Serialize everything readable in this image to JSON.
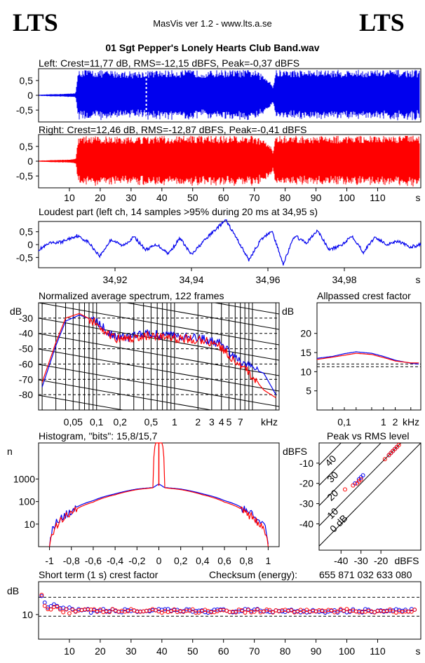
{
  "header": {
    "logo_left": "LTS",
    "logo_right": "LTS",
    "app": "MasVis ver 1.2 - www.lts.a.se",
    "file": "01 Sgt Pepper's Lonely Hearts Club Band.wav"
  },
  "colors": {
    "left": "#0000ee",
    "right": "#ff0000",
    "axis": "#000000",
    "grid": "#000000"
  },
  "chart_data": [
    {
      "id": "left_waveform",
      "type": "area",
      "title": "Left: Crest=11,77 dB, RMS=-12,15 dBFS, Peak=-0,37 dBFS",
      "ylim": [
        -0.9,
        0.9
      ],
      "yticks": [
        "0.5",
        "0",
        "-0.5"
      ],
      "yticklabels": [
        "0,5",
        "0",
        "-0,5"
      ],
      "xlim": [
        0,
        124
      ],
      "series": [
        {
          "color": "#0000ee",
          "t": [
            0,
            10,
            12,
            13,
            20,
            30,
            40,
            50,
            55,
            58,
            60,
            70,
            75,
            76,
            77,
            80,
            90,
            100,
            110,
            122
          ],
          "envelope": [
            0.02,
            0.06,
            0.08,
            0.88,
            0.85,
            0.82,
            0.85,
            0.86,
            0.82,
            0.86,
            0.86,
            0.86,
            0.55,
            0.3,
            0.86,
            0.86,
            0.86,
            0.86,
            0.86,
            0.86
          ]
        }
      ],
      "marker_time": 34.95
    },
    {
      "id": "right_waveform",
      "type": "area",
      "title": "Right: Crest=12,46 dB, RMS=-12,87 dBFS, Peak=-0,41 dBFS",
      "ylim": [
        -0.9,
        0.9
      ],
      "yticklabels": [
        "0,5",
        "0",
        "-0,5"
      ],
      "xlim": [
        0,
        124
      ],
      "xticks": [
        "10",
        "20",
        "30",
        "40",
        "50",
        "60",
        "70",
        "80",
        "90",
        "100",
        "110"
      ],
      "xunit": "s",
      "series": [
        {
          "color": "#ff0000",
          "t": [
            0,
            10,
            12,
            13,
            20,
            30,
            40,
            50,
            60,
            70,
            75,
            76,
            77,
            80,
            90,
            100,
            110,
            122
          ],
          "envelope": [
            0.02,
            0.06,
            0.08,
            0.86,
            0.84,
            0.82,
            0.85,
            0.86,
            0.86,
            0.86,
            0.6,
            0.3,
            0.86,
            0.86,
            0.86,
            0.86,
            0.86,
            0.86
          ]
        }
      ]
    },
    {
      "id": "loudest_part",
      "type": "line",
      "title": "Loudest part (left  ch, 14 samples >95% during 20 ms at 34,95 s)",
      "ylim": [
        -0.9,
        0.9
      ],
      "yticklabels": [
        "0,5",
        "0",
        "-0,5"
      ],
      "xlim": [
        34.9,
        35.0
      ],
      "xticks": [
        "34,92",
        "34,94",
        "34,96",
        "34,98"
      ],
      "xunit": "s",
      "series": [
        {
          "color": "#0000ee",
          "x": [
            34.9,
            34.903,
            34.906,
            34.91,
            34.913,
            34.916,
            34.919,
            34.922,
            34.925,
            34.928,
            34.931,
            34.934,
            34.937,
            34.94,
            34.943,
            34.946,
            34.949,
            34.952,
            34.955,
            34.958,
            34.961,
            34.964,
            34.967,
            34.97,
            34.973,
            34.976,
            34.979,
            34.982,
            34.985,
            34.988,
            34.991,
            34.994,
            34.997,
            35.0
          ],
          "y": [
            -0.2,
            0.05,
            0.1,
            0.35,
            0.1,
            -0.45,
            0.2,
            -0.05,
            0.3,
            -0.2,
            0.0,
            -0.35,
            0.25,
            -0.4,
            0.1,
            0.55,
            0.95,
            0.2,
            -0.6,
            0.15,
            0.55,
            -0.75,
            0.35,
            0.05,
            0.55,
            -0.2,
            -0.05,
            0.35,
            -0.3,
            0.3,
            0.0,
            0.15,
            -0.1,
            0.0
          ]
        }
      ]
    },
    {
      "id": "spectrum",
      "type": "line",
      "title": "Normalized average spectrum, 122 frames",
      "ylabel": "dB",
      "yticklabels": [
        "-30",
        "-40",
        "-50",
        "-60",
        "-70",
        "-80"
      ],
      "xticks": [
        "0,05",
        "0,1",
        "0,2",
        "0,5",
        "1",
        "2",
        "3",
        "4",
        "5",
        "7"
      ],
      "xunit": "kHz",
      "series": [
        {
          "color": "#0000ee",
          "freq_khz": [
            0.02,
            0.03,
            0.04,
            0.06,
            0.1,
            0.15,
            0.2,
            0.3,
            0.5,
            1,
            2,
            3,
            4,
            5,
            6,
            8,
            10,
            14,
            20
          ],
          "db": [
            -75,
            -48,
            -32,
            -28,
            -32,
            -40,
            -43,
            -42,
            -40,
            -42,
            -43,
            -45,
            -47,
            -52,
            -57,
            -60,
            -63,
            -66,
            -80
          ]
        },
        {
          "color": "#ff0000",
          "freq_khz": [
            0.02,
            0.03,
            0.04,
            0.06,
            0.1,
            0.15,
            0.2,
            0.3,
            0.5,
            1,
            2,
            3,
            4,
            5,
            6,
            8,
            10,
            14,
            20
          ],
          "db": [
            -72,
            -46,
            -30,
            -27,
            -33,
            -41,
            -44,
            -43,
            -41,
            -43,
            -44,
            -46,
            -49,
            -54,
            -58,
            -63,
            -68,
            -77,
            -82
          ]
        }
      ]
    },
    {
      "id": "allpassed_crest",
      "type": "line",
      "title": "Allpassed crest factor",
      "ylabel": "dB",
      "yticklabels": [
        "20",
        "15",
        "10",
        "5"
      ],
      "xticks": [
        "0,1",
        "1",
        "2"
      ],
      "xunit": "kHz",
      "series": [
        {
          "color": "#0000ee",
          "freq_khz": [
            0.02,
            0.05,
            0.1,
            0.2,
            0.5,
            1,
            2,
            5,
            8
          ],
          "db": [
            13.5,
            14.0,
            14.7,
            15.2,
            14.8,
            14.0,
            13.0,
            12.2,
            12.0
          ]
        },
        {
          "color": "#ff0000",
          "freq_khz": [
            0.02,
            0.05,
            0.1,
            0.2,
            0.5,
            1,
            2,
            5,
            8
          ],
          "db": [
            13.2,
            13.8,
            14.3,
            14.8,
            14.5,
            13.7,
            12.8,
            12.3,
            12.3
          ]
        }
      ],
      "reference_lines_db": [
        12.0,
        11.3
      ]
    },
    {
      "id": "histogram",
      "type": "line",
      "title": "Histogram, \"bits\": 15,8/15,7",
      "ylabel": "n",
      "ylog": true,
      "yticklabels": [
        "1000",
        "100",
        "10"
      ],
      "xticks": [
        "-1",
        "-0,8",
        "-0,6",
        "-0,4",
        "-0,2",
        "0",
        "0,2",
        "0,4",
        "0,6",
        "0,8",
        "1"
      ],
      "series": [
        {
          "color": "#0000ee",
          "x": [
            -1,
            -0.98,
            -0.95,
            -0.9,
            -0.8,
            -0.6,
            -0.4,
            -0.2,
            -0.05,
            0,
            0.05,
            0.2,
            0.4,
            0.6,
            0.8,
            0.9,
            0.95,
            0.98,
            1
          ],
          "n": [
            1,
            5,
            10,
            18,
            40,
            110,
            220,
            360,
            420,
            600,
            420,
            360,
            220,
            110,
            40,
            18,
            10,
            5,
            1
          ]
        },
        {
          "color": "#ff0000",
          "x": [
            -1,
            -0.98,
            -0.95,
            -0.9,
            -0.8,
            -0.6,
            -0.4,
            -0.2,
            -0.05,
            0,
            0.05,
            0.2,
            0.4,
            0.6,
            0.8,
            0.9,
            0.95,
            0.98,
            1
          ],
          "n": [
            1,
            3,
            8,
            14,
            32,
            95,
            200,
            340,
            410,
            100000,
            410,
            340,
            200,
            95,
            32,
            14,
            8,
            3,
            1
          ]
        }
      ]
    },
    {
      "id": "peak_vs_rms",
      "type": "scatter",
      "title": "Peak vs RMS level",
      "ylabel": "dBFS",
      "xunit": "dBFS",
      "yticklabels": [
        "-10",
        "-20",
        "-30",
        "-40"
      ],
      "xticks": [
        "-40",
        "-30",
        "-20"
      ],
      "crest_labels": [
        "40",
        "30",
        "20",
        "10",
        "0 dB"
      ],
      "series": [
        {
          "color": "#0000ee",
          "rms": [
            -33,
            -31,
            -30,
            -29,
            -16,
            -15,
            -14,
            -13,
            -12
          ],
          "peak": [
            -20,
            -18,
            -17,
            -16,
            -6,
            -5,
            -4,
            -3,
            -2
          ]
        },
        {
          "color": "#ff0000",
          "rms": [
            -38,
            -34,
            -32,
            -31,
            -30,
            -18,
            -16,
            -15,
            -14,
            -13,
            -12,
            -11
          ],
          "peak": [
            -23,
            -21,
            -20,
            -19,
            -18,
            -8,
            -6,
            -5,
            -4,
            -3,
            -2,
            -1
          ]
        }
      ]
    },
    {
      "id": "short_term_crest",
      "type": "scatter",
      "title": "Short term (1 s) crest factor",
      "checksum_label": "Checksum (energy):",
      "checksum_value": "655 871 032 633 080",
      "ylabel": "dB",
      "yticklabels": [
        "10"
      ],
      "xticks": [
        "10",
        "20",
        "30",
        "40",
        "50",
        "60",
        "70",
        "80",
        "90",
        "100",
        "110"
      ],
      "xunit": "s",
      "reference_lines_db": [
        14.2,
        9.6
      ]
    }
  ]
}
